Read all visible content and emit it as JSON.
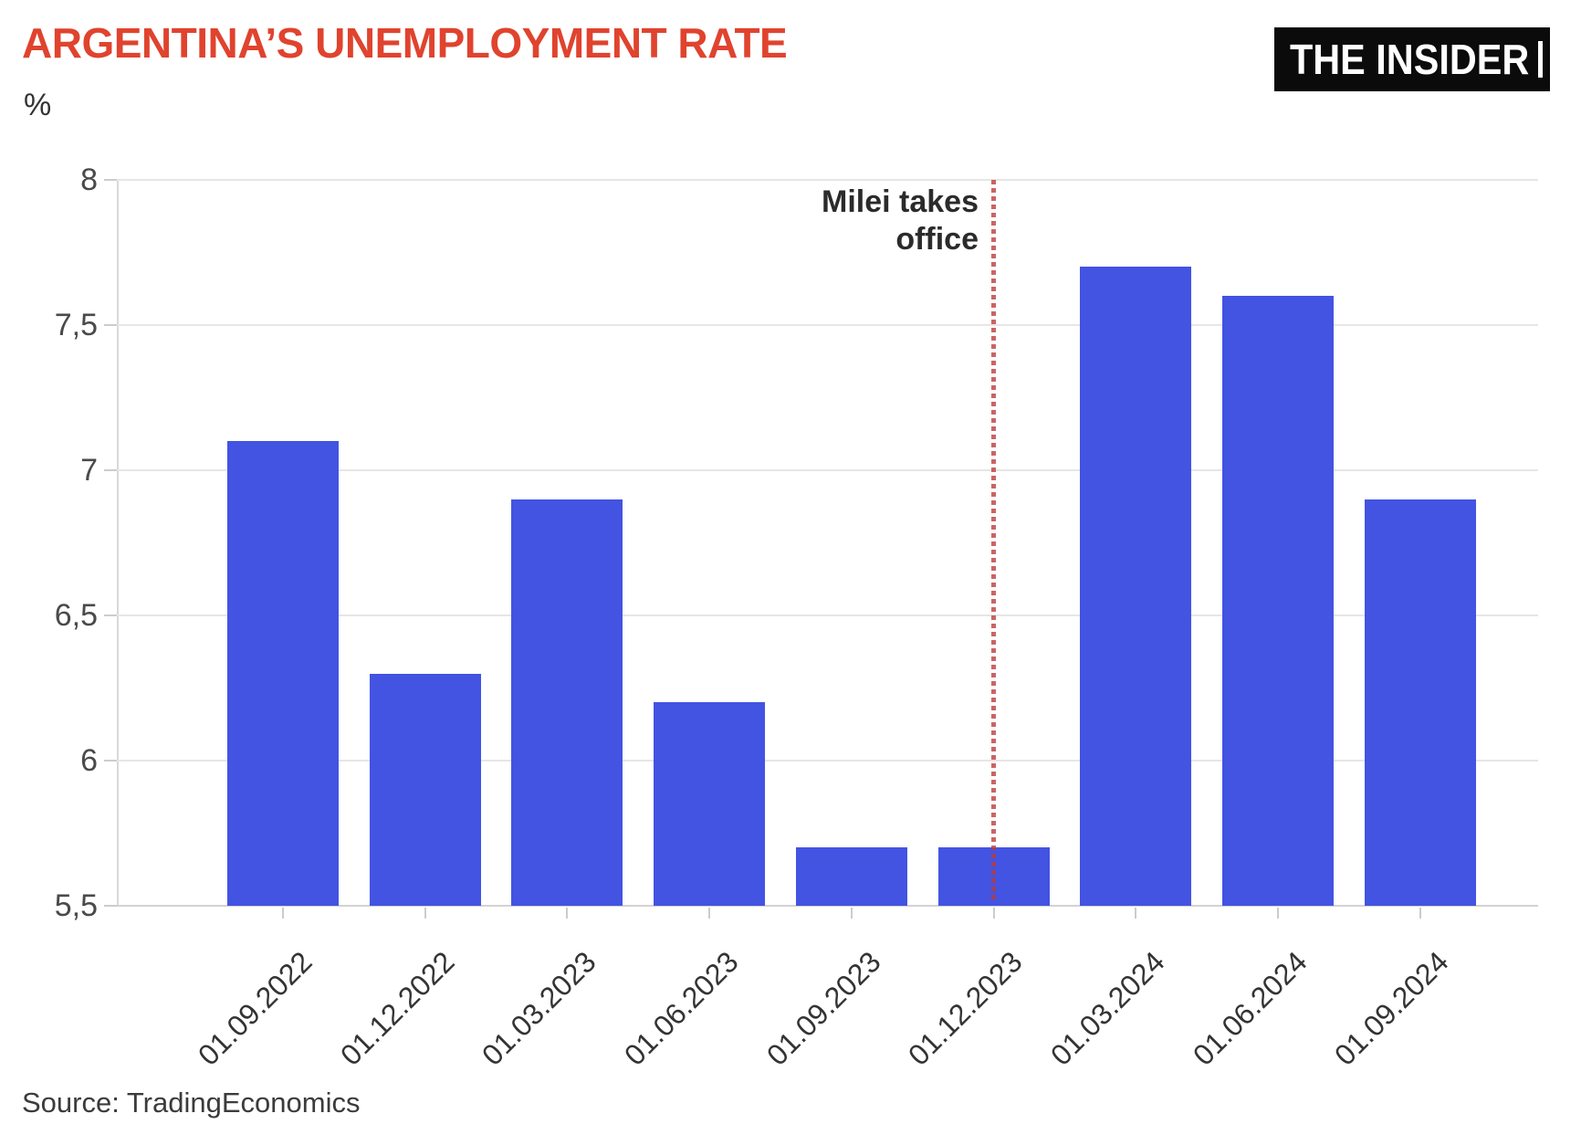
{
  "header": {
    "title": "ARGENTINA’S UNEMPLOYMENT RATE",
    "unit_label": "%",
    "logo_text": "THE INSIDER"
  },
  "annotation": {
    "line1": "Milei takes",
    "line2": "office"
  },
  "footer": {
    "source_label": "Source: TradingEconomics"
  },
  "chart_data": {
    "type": "bar",
    "title": "ARGENTINA’S UNEMPLOYMENT RATE",
    "ylabel": "%",
    "categories": [
      "01.09.2022",
      "01.12.2022",
      "01.03.2023",
      "01.06.2023",
      "01.09.2023",
      "01.12.2023",
      "01.03.2024",
      "01.06.2024",
      "01.09.2024"
    ],
    "values": [
      7.1,
      6.3,
      6.9,
      6.2,
      5.7,
      5.7,
      7.7,
      7.6,
      6.9
    ],
    "ylim": [
      5.5,
      8
    ],
    "yticks": {
      "values": [
        8,
        7.5,
        7,
        6.5,
        6,
        5.5
      ],
      "labels": [
        "8",
        "7,5",
        "7",
        "6,5",
        "6",
        "5,5"
      ]
    },
    "grid": true,
    "legend": "none",
    "annotation": {
      "text": "Milei takes office",
      "at_category": "01.12.2023"
    },
    "colors": {
      "bar": "#4353E2",
      "annotation_line": "#BA3A38",
      "title": "#E0432E"
    },
    "source": "Source: TradingEconomics"
  }
}
